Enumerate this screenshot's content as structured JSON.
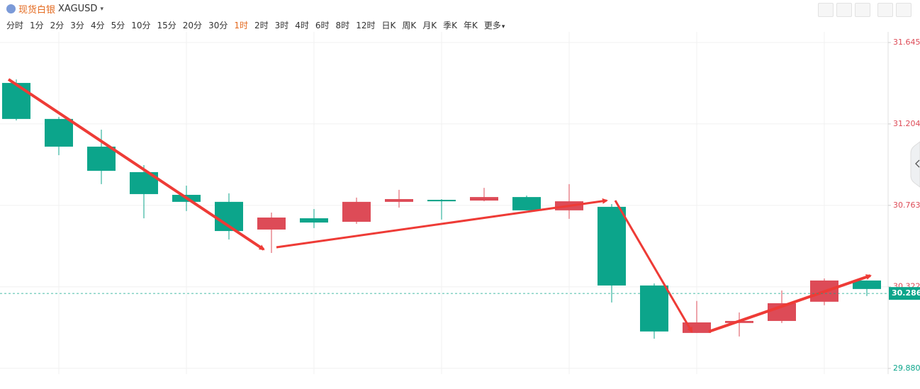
{
  "header": {
    "title": "现货白银",
    "symbol": "XAGUSD"
  },
  "periods": [
    "分时",
    "1分",
    "2分",
    "3分",
    "4分",
    "5分",
    "10分",
    "15分",
    "20分",
    "30分",
    "1时",
    "2时",
    "3时",
    "4时",
    "6时",
    "8时",
    "12时",
    "日K",
    "周K",
    "月K",
    "季K",
    "年K",
    "更多"
  ],
  "active_period": "1时",
  "chart_data": {
    "type": "candlestick",
    "up_color": "#dd4b57",
    "down_color": "#0ca58b",
    "open": [
      31.426,
      31.231,
      31.081,
      30.943,
      30.82,
      30.782,
      30.632,
      30.693,
      30.674,
      30.782,
      30.793,
      30.789,
      30.808,
      30.736,
      30.755,
      30.329,
      30.072,
      30.126,
      30.137,
      30.241,
      30.356
    ],
    "high": [
      31.445,
      31.242,
      31.173,
      30.981,
      30.87,
      30.828,
      30.724,
      30.743,
      30.805,
      30.847,
      30.797,
      30.858,
      30.816,
      30.878,
      30.77,
      30.34,
      30.245,
      30.183,
      30.302,
      30.367,
      30.356
    ],
    "low": [
      31.223,
      31.035,
      30.878,
      30.693,
      30.732,
      30.578,
      30.505,
      30.64,
      30.663,
      30.751,
      30.686,
      30.785,
      30.736,
      30.69,
      30.237,
      30.041,
      30.072,
      30.053,
      30.126,
      30.222,
      30.272
    ],
    "close": [
      31.231,
      31.081,
      30.95,
      30.824,
      30.782,
      30.624,
      30.697,
      30.67,
      30.782,
      30.797,
      30.785,
      30.808,
      30.736,
      30.785,
      30.329,
      30.08,
      30.129,
      30.137,
      30.233,
      30.356,
      30.31
    ],
    "ylim": [
      29.849,
      31.691
    ],
    "yticks": [
      {
        "value": 29.88,
        "label": "29.880"
      },
      30.322,
      30.763,
      31.204,
      31.645
    ],
    "grid": true,
    "last_price": 30.286
  }
}
